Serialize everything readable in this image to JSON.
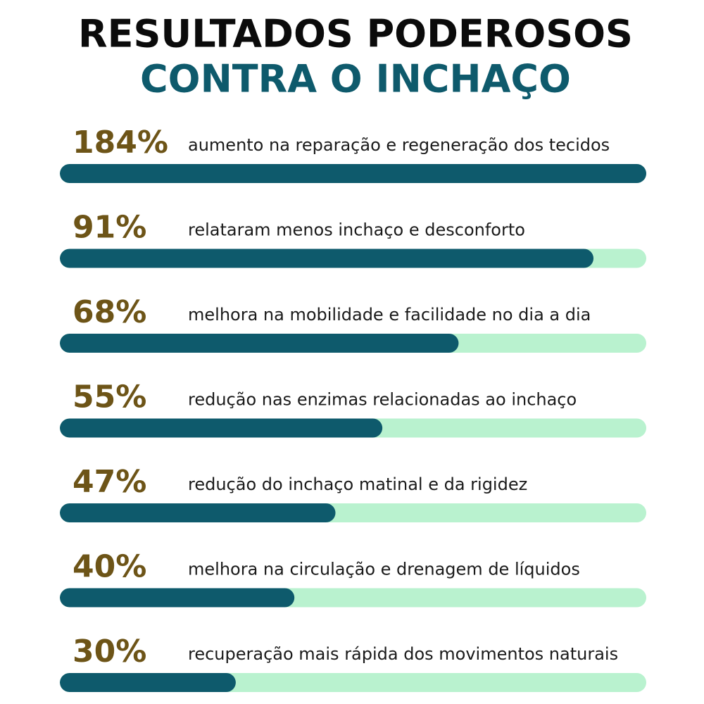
{
  "chart_data": {
    "type": "bar",
    "orientation": "horizontal",
    "title": "RESULTADOS PODEROSOS",
    "subtitle": "CONTRA O INCHAÇO",
    "categories": [
      "aumento na reparação e regeneração dos tecidos",
      "relataram menos inchaço e desconforto",
      "melhora na mobilidade e facilidade no dia a dia",
      "redução nas enzimas relacionadas ao inchaço",
      "redução do inchaço matinal e da rigidez",
      "melhora na circulação e drenagem de líquidos",
      "recuperação mais rápida dos movimentos naturais"
    ],
    "values": [
      184,
      91,
      68,
      55,
      47,
      40,
      30
    ],
    "value_labels": [
      "184%",
      "91%",
      "68%",
      "55%",
      "47%",
      "40%",
      "30%"
    ],
    "xlim": [
      0,
      100
    ],
    "color": "#0e5a6c",
    "track_color": "#b9f2cf",
    "value_label_color": "#6d5417"
  }
}
